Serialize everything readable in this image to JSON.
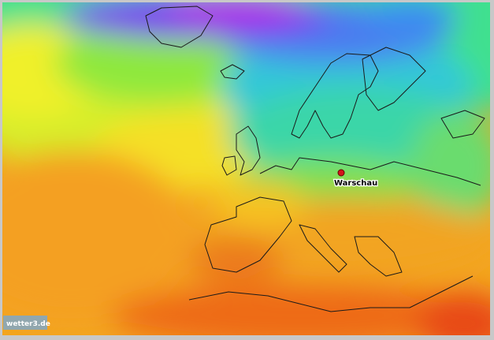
{
  "map": {
    "marker": {
      "label": "Warschau"
    },
    "watermark": "wetter3.de"
  }
}
